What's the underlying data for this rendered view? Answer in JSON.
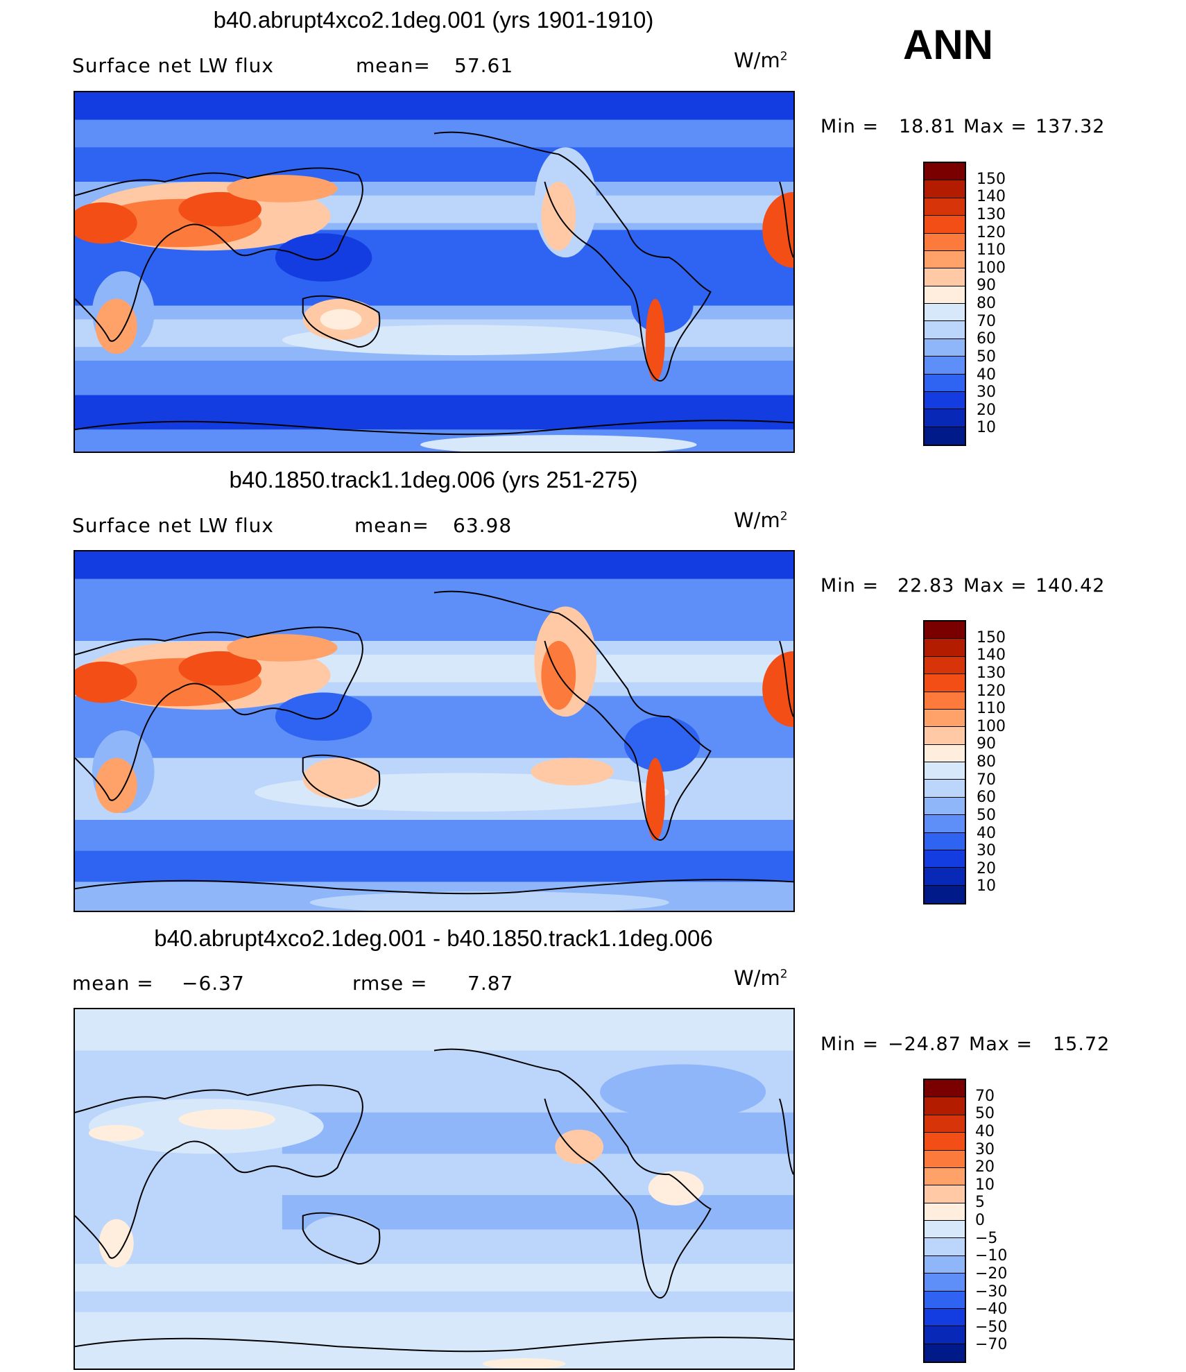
{
  "season": "ANN",
  "unit_main": "W/m",
  "unit_exp": "2",
  "panels": [
    {
      "title": "b40.abrupt4xco2.1deg.001 (yrs 1901-1910)",
      "variable": "Surface net LW flux",
      "stat_label": "mean=",
      "stat_value": "57.61",
      "min_label": "Min  =",
      "min_value": "18.81",
      "max_label": "Max  =",
      "max_value": "137.32",
      "ticks": [
        "150",
        "140",
        "130",
        "120",
        "110",
        "100",
        "90",
        "80",
        "70",
        "60",
        "50",
        "40",
        "30",
        "20",
        "10"
      ],
      "colors": [
        "#7a0000",
        "#b41c00",
        "#d8340a",
        "#f24e16",
        "#fc7a3c",
        "#ffa26a",
        "#ffc9a5",
        "#ffeedd",
        "#d8e8fb",
        "#bcd6fb",
        "#90b6fa",
        "#5e8ff8",
        "#2f64f2",
        "#133de0",
        "#0828b8",
        "#001a8a"
      ]
    },
    {
      "title": "b40.1850.track1.1deg.006 (yrs 251-275)",
      "variable": "Surface net LW flux",
      "stat_label": "mean=",
      "stat_value": "63.98",
      "min_label": "Min  =",
      "min_value": "22.83",
      "max_label": "Max  =",
      "max_value": "140.42",
      "ticks": [
        "150",
        "140",
        "130",
        "120",
        "110",
        "100",
        "90",
        "80",
        "70",
        "60",
        "50",
        "40",
        "30",
        "20",
        "10"
      ],
      "colors": [
        "#7a0000",
        "#b41c00",
        "#d8340a",
        "#f24e16",
        "#fc7a3c",
        "#ffa26a",
        "#ffc9a5",
        "#ffeedd",
        "#d8e8fb",
        "#bcd6fb",
        "#90b6fa",
        "#5e8ff8",
        "#2f64f2",
        "#133de0",
        "#0828b8",
        "#001a8a"
      ]
    },
    {
      "title": "b40.abrupt4xco2.1deg.001 - b40.1850.track1.1deg.006",
      "variable": "mean  =",
      "stat_label": "rmse  =",
      "stat_value": "7.87",
      "mean_value": "−6.37",
      "min_label": "Min  =",
      "min_value": "−24.87",
      "max_label": "Max  =",
      "max_value": "15.72",
      "ticks": [
        "70",
        "50",
        "40",
        "30",
        "20",
        "10",
        "5",
        "0",
        "−5",
        "−10",
        "−20",
        "−30",
        "−40",
        "−50",
        "−70"
      ],
      "colors": [
        "#7a0000",
        "#b41c00",
        "#d8340a",
        "#f24e16",
        "#fc7a3c",
        "#ffa26a",
        "#ffc9a5",
        "#ffeedd",
        "#d8e8fb",
        "#bcd6fb",
        "#90b6fa",
        "#5e8ff8",
        "#2f64f2",
        "#133de0",
        "#0828b8",
        "#001a8a"
      ]
    }
  ]
}
